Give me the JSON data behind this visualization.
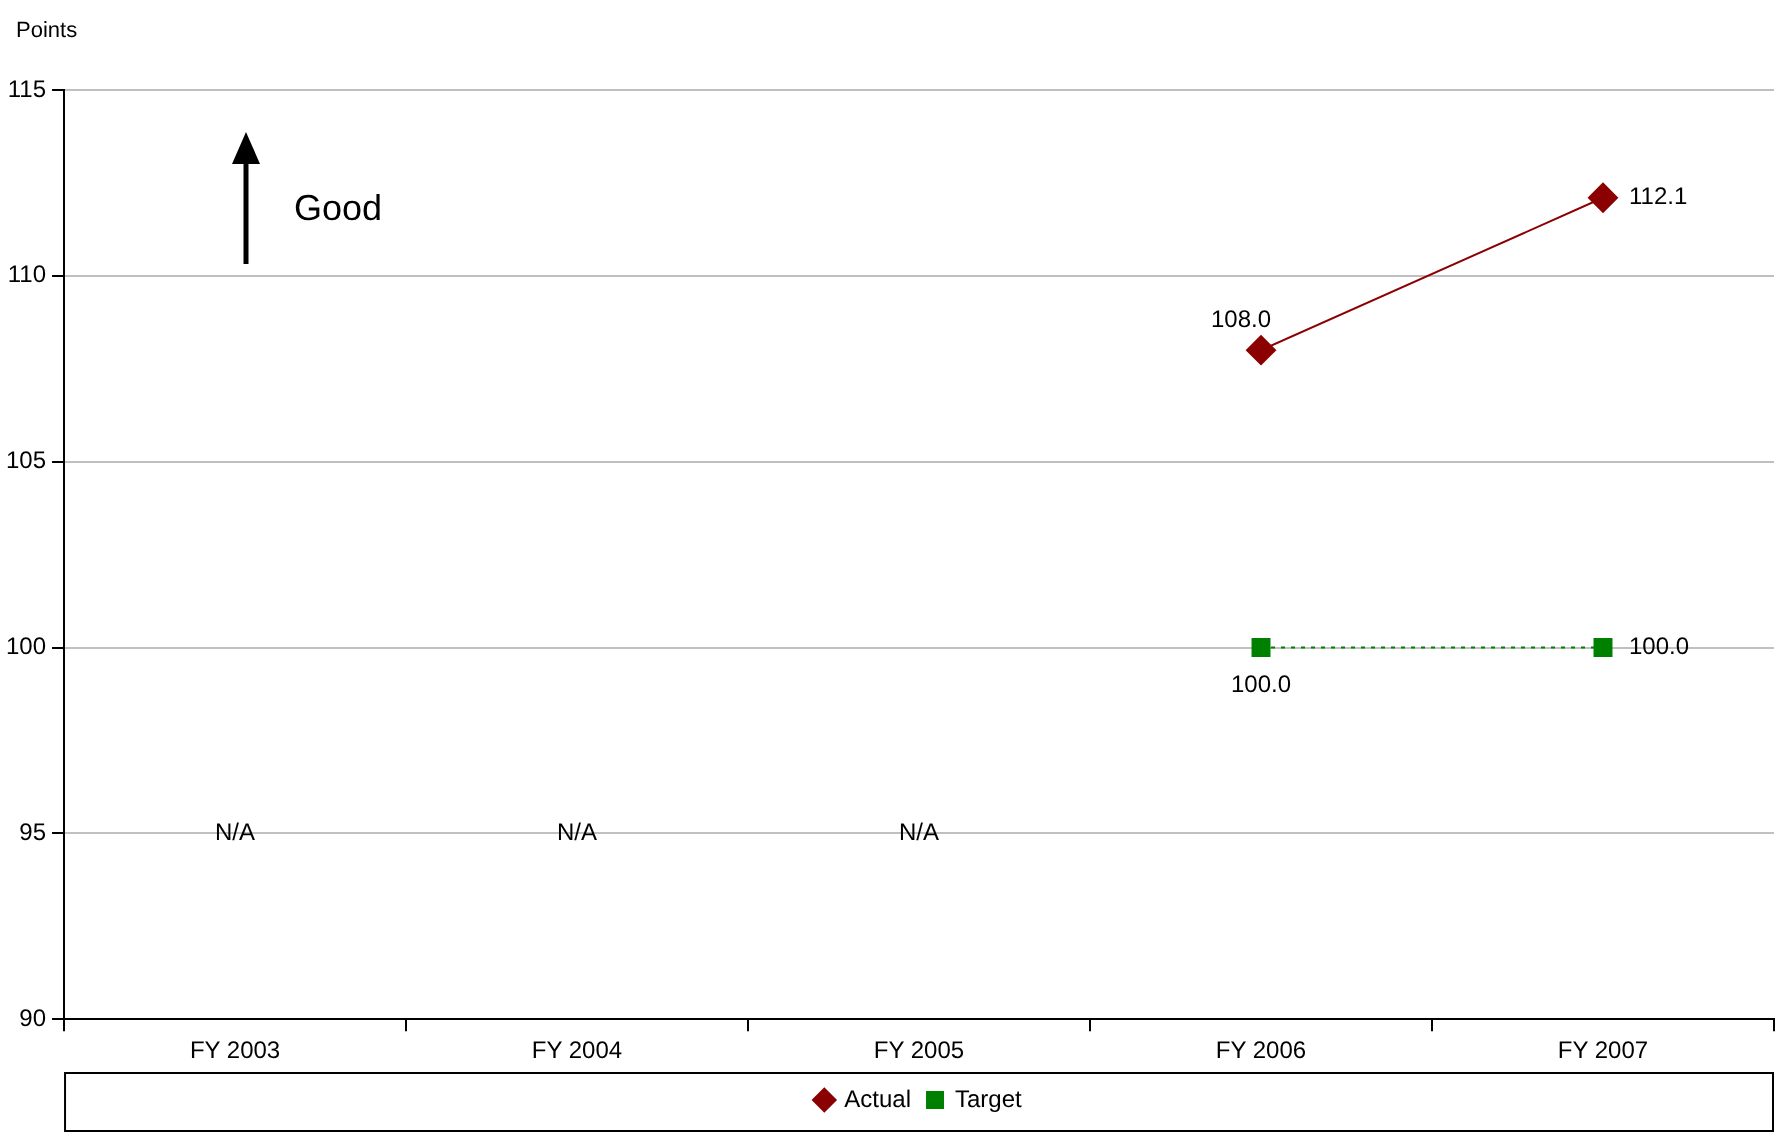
{
  "chart_data": {
    "type": "line",
    "ylabel": "Points",
    "categories": [
      "FY 2003",
      "FY 2004",
      "FY 2005",
      "FY 2006",
      "FY 2007"
    ],
    "series": [
      {
        "name": "Actual",
        "color": "#8b0000",
        "marker": "diamond",
        "line_style": "solid",
        "values": [
          null,
          null,
          null,
          108.0,
          112.1
        ],
        "value_labels": [
          null,
          null,
          null,
          "108.0",
          "112.1"
        ]
      },
      {
        "name": "Target",
        "color": "#008000",
        "marker": "square",
        "line_style": "dotted",
        "values": [
          null,
          null,
          null,
          100.0,
          100.0
        ],
        "value_labels": [
          null,
          null,
          null,
          "100.0",
          "100.0"
        ]
      }
    ],
    "ylim": [
      90,
      115
    ],
    "yticks": [
      90,
      95,
      100,
      105,
      110,
      115
    ],
    "grid": "y",
    "legend": "bottom",
    "annotations": [
      "Good",
      "N/A",
      "N/A",
      "N/A"
    ]
  }
}
